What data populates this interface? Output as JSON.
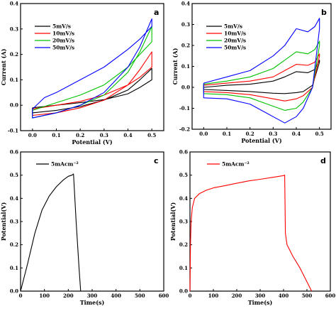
{
  "chart_data": [
    {
      "panel": "a",
      "type": "line",
      "xlabel": "Potential (V)",
      "ylabel": "Current (A)",
      "xlim": [
        -0.05,
        0.55
      ],
      "ylim": [
        -0.1,
        0.4
      ],
      "xticks": [
        "0.0",
        "0.1",
        "0.2",
        "0.3",
        "0.4",
        "0.5"
      ],
      "xtick_values": [
        0.0,
        0.1,
        0.2,
        0.3,
        0.4,
        0.5
      ],
      "yticks": [
        "-0.1",
        "0.0",
        "0.1",
        "0.2",
        "0.3",
        "0.4"
      ],
      "ytick_values": [
        -0.1,
        0.0,
        0.1,
        0.2,
        0.3,
        0.4
      ],
      "legend_position": "top-left",
      "series": [
        {
          "name": "5mV/s",
          "color": "#000000",
          "x": [
            0.0,
            0.1,
            0.2,
            0.3,
            0.4,
            0.45,
            0.5,
            0.5,
            0.45,
            0.4,
            0.3,
            0.2,
            0.1,
            0.0,
            0.0
          ],
          "y": [
            -0.01,
            0.0,
            0.01,
            0.022,
            0.045,
            0.07,
            0.1,
            0.145,
            0.1,
            0.06,
            0.02,
            -0.005,
            -0.02,
            -0.03,
            -0.01
          ]
        },
        {
          "name": "10mV/s",
          "color": "#ff0000",
          "x": [
            0.0,
            0.1,
            0.2,
            0.3,
            0.4,
            0.45,
            0.5,
            0.5,
            0.45,
            0.4,
            0.3,
            0.2,
            0.1,
            0.0,
            0.0
          ],
          "y": [
            -0.015,
            0.0,
            0.015,
            0.04,
            0.08,
            0.11,
            0.15,
            0.21,
            0.14,
            0.08,
            0.02,
            -0.01,
            -0.03,
            -0.04,
            -0.015
          ]
        },
        {
          "name": "20mV/s",
          "color": "#00c000",
          "x": [
            0.0,
            0.1,
            0.2,
            0.3,
            0.4,
            0.45,
            0.5,
            0.5,
            0.45,
            0.4,
            0.3,
            0.2,
            0.1,
            0.0,
            0.0
          ],
          "y": [
            -0.02,
            0.01,
            0.04,
            0.08,
            0.15,
            0.2,
            0.25,
            0.31,
            0.21,
            0.13,
            0.04,
            0.0,
            -0.03,
            -0.05,
            -0.02
          ]
        },
        {
          "name": "50mV/s",
          "color": "#0000ff",
          "x": [
            0.0,
            0.05,
            0.1,
            0.2,
            0.3,
            0.4,
            0.45,
            0.5,
            0.5,
            0.45,
            0.4,
            0.3,
            0.2,
            0.1,
            0.0,
            0.0
          ],
          "y": [
            -0.015,
            0.03,
            0.05,
            0.1,
            0.15,
            0.22,
            0.26,
            0.31,
            0.34,
            0.23,
            0.15,
            0.05,
            0.0,
            -0.03,
            -0.05,
            -0.015
          ]
        }
      ]
    },
    {
      "panel": "b",
      "type": "line",
      "xlabel": "Potential (V)",
      "ylabel": "Current (A)",
      "xlim": [
        -0.05,
        0.55
      ],
      "ylim": [
        -0.2,
        0.4
      ],
      "xticks": [
        "0.0",
        "0.1",
        "0.2",
        "0.3",
        "0.4",
        "0.5"
      ],
      "xtick_values": [
        0.0,
        0.1,
        0.2,
        0.3,
        0.4,
        0.5
      ],
      "yticks": [
        "-0.2",
        "-0.1",
        "0.0",
        "0.1",
        "0.2",
        "0.3",
        "0.4"
      ],
      "ytick_values": [
        -0.2,
        -0.1,
        0.0,
        0.1,
        0.2,
        0.3,
        0.4
      ],
      "legend_position": "top-left",
      "series": [
        {
          "name": "5mV/s",
          "color": "#000000",
          "x": [
            0.0,
            0.1,
            0.2,
            0.3,
            0.35,
            0.4,
            0.45,
            0.48,
            0.5,
            0.5,
            0.47,
            0.43,
            0.4,
            0.35,
            0.3,
            0.2,
            0.1,
            0.0,
            0.0
          ],
          "y": [
            0.0,
            0.01,
            0.015,
            0.03,
            0.05,
            0.075,
            0.07,
            0.085,
            0.13,
            0.12,
            0.01,
            -0.02,
            -0.025,
            -0.03,
            -0.028,
            -0.02,
            -0.015,
            -0.01,
            0.0
          ]
        },
        {
          "name": "10mV/s",
          "color": "#ff0000",
          "x": [
            0.0,
            0.1,
            0.2,
            0.3,
            0.35,
            0.4,
            0.45,
            0.48,
            0.5,
            0.5,
            0.47,
            0.43,
            0.4,
            0.35,
            0.3,
            0.2,
            0.1,
            0.0,
            0.0
          ],
          "y": [
            0.01,
            0.02,
            0.03,
            0.05,
            0.08,
            0.11,
            0.105,
            0.12,
            0.16,
            0.15,
            0.0,
            -0.04,
            -0.055,
            -0.065,
            -0.055,
            -0.035,
            -0.025,
            -0.02,
            0.01
          ]
        },
        {
          "name": "20mV/s",
          "color": "#00c000",
          "x": [
            0.0,
            0.1,
            0.2,
            0.3,
            0.35,
            0.4,
            0.45,
            0.48,
            0.5,
            0.5,
            0.47,
            0.43,
            0.4,
            0.35,
            0.3,
            0.2,
            0.1,
            0.0,
            0.0
          ],
          "y": [
            0.015,
            0.03,
            0.05,
            0.09,
            0.13,
            0.17,
            0.16,
            0.18,
            0.22,
            0.2,
            0.0,
            -0.07,
            -0.1,
            -0.11,
            -0.09,
            -0.05,
            -0.035,
            -0.03,
            0.015
          ]
        },
        {
          "name": "50mV/s",
          "color": "#0000ff",
          "x": [
            0.0,
            0.1,
            0.2,
            0.3,
            0.35,
            0.4,
            0.45,
            0.48,
            0.5,
            0.5,
            0.47,
            0.43,
            0.4,
            0.35,
            0.3,
            0.2,
            0.1,
            0.0,
            0.0
          ],
          "y": [
            0.02,
            0.05,
            0.08,
            0.15,
            0.2,
            0.28,
            0.265,
            0.29,
            0.33,
            0.28,
            0.0,
            -0.1,
            -0.14,
            -0.17,
            -0.14,
            -0.08,
            -0.055,
            -0.05,
            0.02
          ]
        }
      ]
    },
    {
      "panel": "c",
      "type": "line",
      "xlabel": "Time(s)",
      "ylabel": "Potential(V)",
      "xlim": [
        0,
        600
      ],
      "ylim": [
        0.0,
        0.6
      ],
      "xticks": [
        "0",
        "100",
        "200",
        "300",
        "400",
        "500",
        "600"
      ],
      "xtick_values": [
        0,
        100,
        200,
        300,
        400,
        500,
        600
      ],
      "yticks": [
        "0.0",
        "0.1",
        "0.2",
        "0.3",
        "0.4",
        "0.5",
        "0.6"
      ],
      "ytick_values": [
        0.0,
        0.1,
        0.2,
        0.3,
        0.4,
        0.5,
        0.6
      ],
      "legend_position": "top-left",
      "series": [
        {
          "name": "5mAcm⁻²",
          "color": "#000000",
          "x": [
            0,
            5,
            30,
            60,
            90,
            120,
            150,
            180,
            200,
            215,
            222,
            233,
            245,
            252
          ],
          "y": [
            0.0,
            0.02,
            0.12,
            0.25,
            0.35,
            0.41,
            0.45,
            0.48,
            0.495,
            0.5,
            0.505,
            0.3,
            0.1,
            0.0
          ]
        }
      ]
    },
    {
      "panel": "d",
      "type": "line",
      "xlabel": "Time(s)",
      "ylabel": "Potential(V)",
      "xlim": [
        0,
        600
      ],
      "ylim": [
        0.0,
        0.6
      ],
      "xticks": [
        "0",
        "100",
        "200",
        "300",
        "400",
        "500",
        "600"
      ],
      "xtick_values": [
        0,
        100,
        200,
        300,
        400,
        500,
        600
      ],
      "yticks": [
        "0.0",
        "0.1",
        "0.2",
        "0.3",
        "0.4",
        "0.5",
        "0.6"
      ],
      "ytick_values": [
        0.0,
        0.1,
        0.2,
        0.3,
        0.4,
        0.5,
        0.6
      ],
      "legend_position": "top-left",
      "series": [
        {
          "name": "5mAcm⁻²",
          "color": "#ff0000",
          "x": [
            0,
            2,
            5,
            10,
            20,
            40,
            70,
            100,
            150,
            200,
            250,
            300,
            350,
            400,
            405,
            408,
            415,
            440,
            470,
            500,
            520
          ],
          "y": [
            0.0,
            0.2,
            0.3,
            0.36,
            0.4,
            0.42,
            0.435,
            0.445,
            0.455,
            0.465,
            0.475,
            0.482,
            0.49,
            0.498,
            0.5,
            0.25,
            0.2,
            0.15,
            0.1,
            0.04,
            0.0
          ]
        }
      ]
    }
  ],
  "panel_labels": [
    "a",
    "b",
    "c",
    "d"
  ]
}
